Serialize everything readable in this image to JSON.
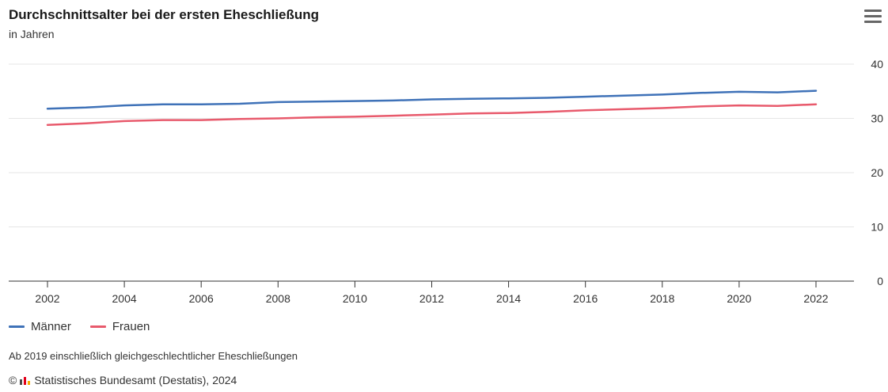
{
  "header": {
    "title": "Durchschnittsalter bei der ersten Eheschließung",
    "subtitle": "in Jahren"
  },
  "menu": {
    "icon": "hamburger-menu-icon"
  },
  "legend": [
    {
      "label": "Männer",
      "color": "#3f72b8"
    },
    {
      "label": "Frauen",
      "color": "#e85a6c"
    }
  ],
  "footer": {
    "note": "Ab 2019 einschließlich gleichgeschlechtlicher Eheschließungen",
    "copyright_symbol": "©",
    "source": "Statistisches Bundesamt (Destatis), 2024"
  },
  "chart_data": {
    "type": "line",
    "title": "Durchschnittsalter bei der ersten Eheschließung",
    "subtitle": "in Jahren",
    "xlabel": "",
    "ylabel": "",
    "x": [
      2002,
      2003,
      2004,
      2005,
      2006,
      2007,
      2008,
      2009,
      2010,
      2011,
      2012,
      2013,
      2014,
      2015,
      2016,
      2017,
      2018,
      2019,
      2020,
      2021,
      2022
    ],
    "x_ticks": [
      "2002",
      "2004",
      "2006",
      "2008",
      "2010",
      "2012",
      "2014",
      "2016",
      "2018",
      "2020",
      "2022"
    ],
    "y_ticks": [
      "0",
      "10",
      "20",
      "30",
      "40"
    ],
    "ylim": [
      0,
      40
    ],
    "y_axis_position": "right",
    "grid": "horizontal",
    "legend_position": "bottom-left",
    "series": [
      {
        "name": "Männer",
        "color": "#3f72b8",
        "values": [
          31.8,
          32.0,
          32.4,
          32.6,
          32.6,
          32.7,
          33.0,
          33.1,
          33.2,
          33.3,
          33.5,
          33.6,
          33.7,
          33.8,
          34.0,
          34.2,
          34.4,
          34.7,
          34.9,
          34.8,
          35.1
        ]
      },
      {
        "name": "Frauen",
        "color": "#e85a6c",
        "values": [
          28.8,
          29.1,
          29.5,
          29.7,
          29.7,
          29.9,
          30.0,
          30.2,
          30.3,
          30.5,
          30.7,
          30.9,
          31.0,
          31.2,
          31.5,
          31.7,
          31.9,
          32.2,
          32.4,
          32.3,
          32.6
        ]
      }
    ]
  }
}
